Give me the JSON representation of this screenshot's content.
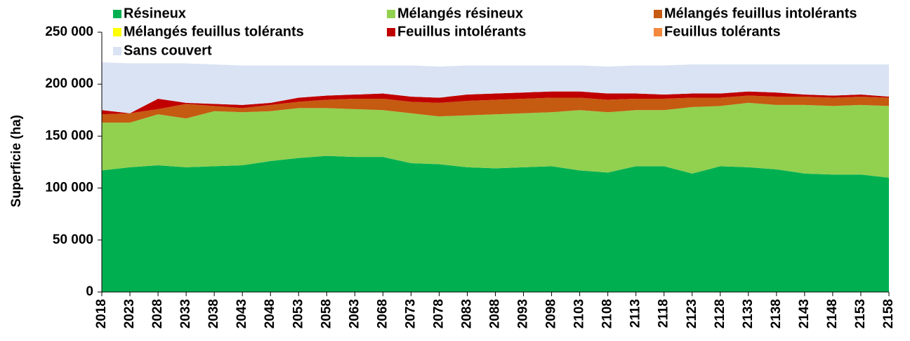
{
  "chart_data": {
    "type": "stacked_area",
    "y_label": "Superficie (ha)",
    "x": [
      2018,
      2023,
      2028,
      2033,
      2038,
      2043,
      2048,
      2053,
      2058,
      2063,
      2068,
      2073,
      2078,
      2083,
      2088,
      2093,
      2098,
      2103,
      2108,
      2113,
      2118,
      2123,
      2128,
      2133,
      2138,
      2143,
      2148,
      2153,
      2158
    ],
    "xlim": [
      2018,
      2158
    ],
    "ylim": [
      0,
      250000
    ],
    "yticks": [
      0,
      {
        "value": 50000,
        "label": "50 000"
      },
      {
        "value": 100000,
        "label": "100 000"
      },
      {
        "value": 150000,
        "label": "150 000"
      },
      {
        "value": 200000,
        "label": "200 000"
      },
      {
        "value": 250000,
        "label": "250 000"
      }
    ],
    "series": [
      {
        "name": "Résineux",
        "color": "#00b050",
        "values": [
          117000,
          120000,
          122000,
          120000,
          121000,
          122000,
          126000,
          129000,
          131000,
          130000,
          130000,
          124000,
          123000,
          120000,
          119000,
          120000,
          121000,
          117000,
          115000,
          121000,
          121000,
          114000,
          121000,
          120000,
          118000,
          114000,
          113000,
          113000,
          110000
        ]
      },
      {
        "name": "Mélangés résineux",
        "color": "#92d050",
        "values": [
          46000,
          43000,
          49000,
          47000,
          53000,
          51000,
          48000,
          48000,
          46000,
          46000,
          45000,
          48000,
          46000,
          50000,
          52000,
          52000,
          52000,
          58000,
          58000,
          54000,
          54000,
          64000,
          58000,
          62000,
          62000,
          66000,
          66000,
          67000,
          69000
        ]
      },
      {
        "name": "Mélangés feuillus intolérants",
        "color": "#c55a11",
        "values": [
          8000,
          9000,
          5000,
          14000,
          5000,
          4000,
          6000,
          6000,
          8000,
          10000,
          11000,
          11000,
          13000,
          14000,
          14000,
          14000,
          14000,
          12000,
          12000,
          11000,
          11000,
          9000,
          8000,
          7000,
          8000,
          8000,
          8000,
          8000,
          8000
        ]
      },
      {
        "name": "Mélangés feuillus tolérants",
        "color": "#ffff00",
        "values": [
          0,
          0,
          0,
          0,
          0,
          0,
          0,
          0,
          0,
          0,
          0,
          0,
          0,
          0,
          0,
          0,
          0,
          0,
          0,
          0,
          0,
          0,
          0,
          0,
          0,
          0,
          0,
          0,
          0
        ]
      },
      {
        "name": "Feuillus intolérants",
        "color": "#c00000",
        "values": [
          4000,
          0,
          10000,
          1000,
          2000,
          3000,
          2000,
          4000,
          4000,
          4000,
          5000,
          5000,
          5000,
          6000,
          6000,
          6000,
          6000,
          6000,
          6000,
          5000,
          4000,
          4000,
          4000,
          4000,
          4000,
          2000,
          2000,
          2000,
          1000
        ]
      },
      {
        "name": "Feuillus tolérants",
        "color": "#f4883c",
        "values": [
          0,
          0,
          0,
          0,
          0,
          0,
          0,
          0,
          0,
          0,
          0,
          0,
          0,
          0,
          0,
          0,
          0,
          0,
          0,
          0,
          0,
          0,
          0,
          0,
          0,
          0,
          0,
          0,
          0
        ]
      },
      {
        "name": "Sans couvert",
        "color": "#dae3f3",
        "values": [
          46000,
          48000,
          34000,
          38000,
          38000,
          38000,
          36000,
          31000,
          29000,
          28000,
          27000,
          30000,
          30000,
          28000,
          27000,
          26000,
          25000,
          25000,
          26000,
          27000,
          28000,
          28000,
          28000,
          26000,
          27000,
          29000,
          30000,
          29000,
          31000
        ]
      }
    ]
  }
}
